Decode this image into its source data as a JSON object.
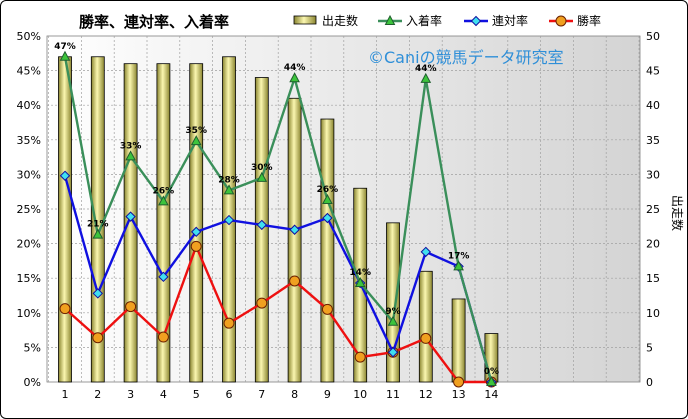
{
  "chart_data": {
    "type": "bar+line",
    "title": "勝率、連対率、入着率",
    "watermark": "©Caniの競馬データ研究室",
    "categories": [
      "1",
      "2",
      "3",
      "4",
      "5",
      "6",
      "7",
      "8",
      "9",
      "10",
      "11",
      "12",
      "13",
      "14"
    ],
    "y_left": {
      "min": 0,
      "max": 50,
      "step": 5,
      "suffix": "%"
    },
    "y_right": {
      "min": 0,
      "max": 50,
      "step": 5,
      "label": "出走数"
    },
    "grid": true,
    "legend_position": "top-right",
    "bars": {
      "name": "出走数",
      "axis": "right",
      "color": "#d8d47a",
      "values": [
        47,
        47,
        46,
        46,
        46,
        47,
        44,
        41,
        38,
        28,
        23,
        16,
        12,
        7
      ]
    },
    "series": [
      {
        "name": "入着率",
        "axis": "left",
        "color": "#3a8f5a",
        "marker": "triangle",
        "marker_fill": "#3cc43c",
        "values": [
          47,
          21.3,
          32.6,
          26.1,
          34.8,
          27.7,
          29.5,
          43.9,
          26.3,
          14.3,
          8.7,
          43.8,
          16.7,
          0
        ],
        "labels": [
          "47%",
          "21%",
          "33%",
          "26%",
          "35%",
          "28%",
          "30%",
          "44%",
          "26%",
          "14%",
          "9%",
          "44%",
          "17%",
          "0%"
        ]
      },
      {
        "name": "連対率",
        "axis": "left",
        "color": "#1010e0",
        "marker": "diamond",
        "marker_fill": "#40e0f0",
        "values": [
          29.8,
          12.8,
          23.9,
          15.2,
          21.7,
          23.4,
          22.7,
          22.0,
          23.7,
          14.3,
          4.3,
          18.8,
          16.7,
          0
        ]
      },
      {
        "name": "勝率",
        "axis": "left",
        "color": "#ee1010",
        "marker": "circle",
        "marker_fill": "#f0a020",
        "values": [
          10.6,
          6.4,
          10.9,
          6.5,
          19.6,
          8.5,
          11.4,
          14.6,
          10.5,
          3.6,
          4.3,
          6.3,
          0,
          0
        ]
      }
    ]
  }
}
